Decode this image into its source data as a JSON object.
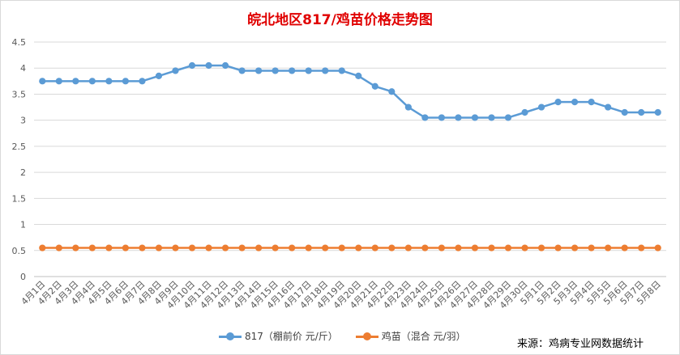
{
  "chart_data": {
    "type": "line",
    "title": "皖北地区817/鸡苗价格走势图",
    "categories": [
      "4月1日",
      "4月2日",
      "4月3日",
      "4月4日",
      "4月5日",
      "4月6日",
      "4月7日",
      "4月8日",
      "4月9日",
      "4月10日",
      "4月11日",
      "4月12日",
      "4月13日",
      "4月14日",
      "4月15日",
      "4月16日",
      "4月17日",
      "4月18日",
      "4月19日",
      "4月20日",
      "4月21日",
      "4月22日",
      "4月23日",
      "4月24日",
      "4月25日",
      "4月26日",
      "4月27日",
      "4月28日",
      "4月29日",
      "4月30日",
      "5月1日",
      "5月2日",
      "5月3日",
      "5月4日",
      "5月5日",
      "5月6日",
      "5月7日",
      "5月8日"
    ],
    "series": [
      {
        "name": "817（棚前价 元/斤）",
        "color": "#5b9bd5",
        "values": [
          3.75,
          3.75,
          3.75,
          3.75,
          3.75,
          3.75,
          3.75,
          3.85,
          3.95,
          4.05,
          4.05,
          4.05,
          3.95,
          3.95,
          3.95,
          3.95,
          3.95,
          3.95,
          3.95,
          3.85,
          3.65,
          3.55,
          3.25,
          3.05,
          3.05,
          3.05,
          3.05,
          3.05,
          3.05,
          3.15,
          3.25,
          3.35,
          3.35,
          3.35,
          3.25,
          3.15,
          3.15,
          3.15
        ]
      },
      {
        "name": "鸡苗（混合 元/羽）",
        "color": "#ed7d31",
        "values": [
          0.55,
          0.55,
          0.55,
          0.55,
          0.55,
          0.55,
          0.55,
          0.55,
          0.55,
          0.55,
          0.55,
          0.55,
          0.55,
          0.55,
          0.55,
          0.55,
          0.55,
          0.55,
          0.55,
          0.55,
          0.55,
          0.55,
          0.55,
          0.55,
          0.55,
          0.55,
          0.55,
          0.55,
          0.55,
          0.55,
          0.55,
          0.55,
          0.55,
          0.55,
          0.55,
          0.55,
          0.55,
          0.55
        ]
      }
    ],
    "ylim": [
      0,
      4.5
    ],
    "yticks": [
      "0",
      "0.5",
      "1",
      "1.5",
      "2",
      "2.5",
      "3",
      "3.5",
      "4",
      "4.5"
    ],
    "grid": true,
    "legend_position": "bottom-center",
    "source": "来源：鸡病专业网数据统计"
  }
}
